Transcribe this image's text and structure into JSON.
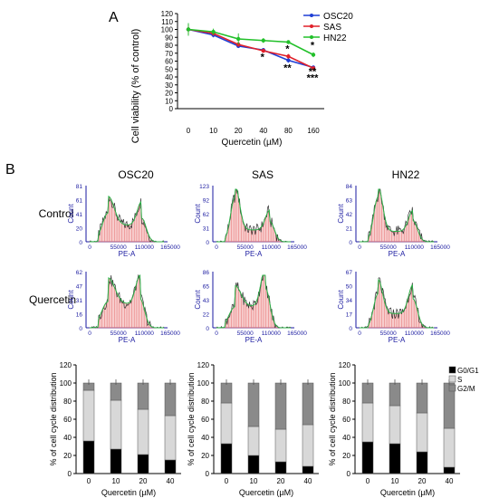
{
  "panel_a": {
    "letter": "A",
    "ylabel": "Cell viability (% of control)",
    "xlabel": "Quercetin (µM)"
  },
  "panel_b": {
    "letter": "B",
    "row_labels": [
      "Control",
      "Quercetin"
    ],
    "flow_xlabel": "PE-A",
    "flow_ylabel": "Count",
    "bar_ylabel": "% of cell cycle distribution",
    "bar_xlabel": "Quercetin (µM)"
  },
  "colors": {
    "OSC20": "#1f3fd6",
    "SAS": "#e0202a",
    "HN22": "#22c02a",
    "flow_axis": "#1a1aa0",
    "flow_fill": "#e77070",
    "G0G1": "#000000",
    "S": "#d8d8d8",
    "G2M": "#8a8a8a"
  },
  "chart_data": [
    {
      "id": "viability",
      "type": "line",
      "xlabel": "Quercetin (µM)",
      "ylabel": "Cell viability (% of control)",
      "categories": [
        "0",
        "10",
        "20",
        "40",
        "80",
        "160"
      ],
      "ylim": [
        0,
        120
      ],
      "yticks": [
        "0",
        "10",
        "20",
        "30",
        "40",
        "50",
        "60",
        "70",
        "80",
        "90",
        "100",
        "110",
        "120"
      ],
      "legend_position": "top-right",
      "series": [
        {
          "name": "OSC20",
          "values": [
            100,
            93,
            79,
            74,
            61,
            52
          ],
          "err": [
            7,
            3,
            2,
            2,
            3,
            2
          ]
        },
        {
          "name": "SAS",
          "values": [
            100,
            95,
            81,
            73,
            66,
            51
          ],
          "err": [
            6,
            3,
            3,
            2,
            3,
            2
          ]
        },
        {
          "name": "HN22",
          "values": [
            100,
            97,
            88,
            86,
            84,
            68
          ],
          "err": [
            8,
            4,
            7,
            3,
            2,
            3
          ]
        }
      ],
      "annotations": [
        {
          "x": "40",
          "text": "*",
          "near": "OSC20"
        },
        {
          "x": "80",
          "text": "*",
          "near": "SAS"
        },
        {
          "x": "80",
          "text": "**",
          "near": "OSC20"
        },
        {
          "x": "160",
          "text": "*",
          "near": "HN22"
        },
        {
          "x": "160",
          "text": "**",
          "near": "SAS"
        },
        {
          "x": "160",
          "text": "***",
          "near": "OSC20"
        }
      ]
    },
    {
      "id": "flow_histograms",
      "type": "area",
      "xticks": [
        "0",
        "55000",
        "110000",
        "165000"
      ],
      "panels": [
        {
          "cell": "OSC20",
          "condition": "Control",
          "yticks": [
            "0",
            "20",
            "41",
            "61",
            "81"
          ],
          "ymax": 81,
          "g1": 0.55,
          "g1_width": 0.08,
          "s": 0.35,
          "g2": 0.45,
          "g2_pos": 0.7
        },
        {
          "cell": "SAS",
          "condition": "Control",
          "yticks": [
            "0",
            "31",
            "62",
            "92",
            "123"
          ],
          "ymax": 123,
          "g1": 0.85,
          "g1_width": 0.06,
          "s": 0.25,
          "g2": 0.38,
          "g2_pos": 0.72
        },
        {
          "cell": "HN22",
          "condition": "Control",
          "yticks": [
            "0",
            "21",
            "42",
            "63",
            "84"
          ],
          "ymax": 84,
          "g1": 0.85,
          "g1_width": 0.06,
          "s": 0.22,
          "g2": 0.4,
          "g2_pos": 0.72
        },
        {
          "cell": "OSC20",
          "condition": "Quercetin",
          "yticks": [
            "0",
            "16",
            "31",
            "47",
            "62"
          ],
          "ymax": 62,
          "g1": 0.5,
          "g1_width": 0.09,
          "s": 0.5,
          "g2": 0.55,
          "g2_pos": 0.68
        },
        {
          "cell": "SAS",
          "condition": "Quercetin",
          "yticks": [
            "0",
            "22",
            "43",
            "65",
            "86"
          ],
          "ymax": 86,
          "g1": 0.4,
          "g1_width": 0.08,
          "s": 0.45,
          "g2": 0.75,
          "g2_pos": 0.66
        },
        {
          "cell": "HN22",
          "condition": "Quercetin",
          "yticks": [
            "0",
            "17",
            "34",
            "50",
            "67"
          ],
          "ymax": 67,
          "g1": 0.65,
          "g1_width": 0.06,
          "s": 0.3,
          "g2": 0.55,
          "g2_pos": 0.72
        }
      ]
    },
    {
      "id": "cell_cycle",
      "type": "bar",
      "stacked": true,
      "categories": [
        "0",
        "10",
        "20",
        "40"
      ],
      "ylim": [
        0,
        120
      ],
      "yticks": [
        "0",
        "20",
        "40",
        "60",
        "80",
        "100",
        "120"
      ],
      "xlabel": "Quercetin (µM)",
      "ylabel": "% of cell cycle distribution",
      "legend": [
        "G0/G1",
        "S",
        "G2/M"
      ],
      "legend_position": "top-right",
      "panels": [
        {
          "cell": "OSC20",
          "G0G1": [
            36,
            27,
            21,
            15
          ],
          "S": [
            56,
            54,
            50,
            49
          ],
          "G2M": [
            8,
            19,
            29,
            36
          ]
        },
        {
          "cell": "SAS",
          "G0G1": [
            33,
            20,
            13,
            8
          ],
          "S": [
            45,
            32,
            36,
            46
          ],
          "G2M": [
            22,
            48,
            51,
            46
          ]
        },
        {
          "cell": "HN22",
          "G0G1": [
            35,
            33,
            24,
            7
          ],
          "S": [
            43,
            42,
            43,
            43
          ],
          "G2M": [
            22,
            25,
            33,
            50
          ]
        }
      ]
    }
  ]
}
